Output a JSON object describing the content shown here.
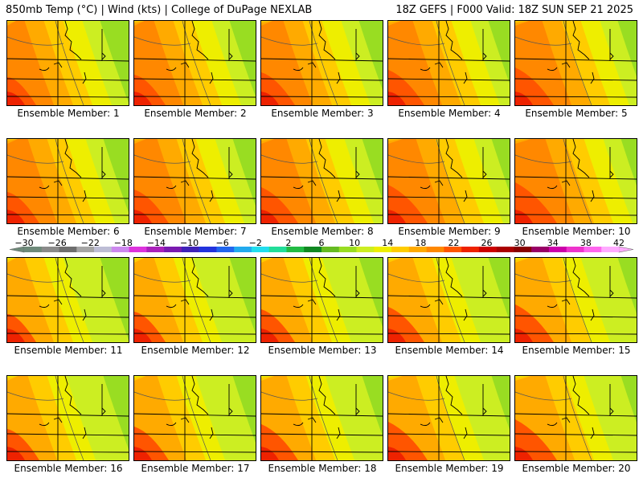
{
  "header": {
    "left": "850mb Temp (°C) | Wind (kts) | College of DuPage NEXLAB",
    "right": "18Z GEFS | F000 Valid: 18Z SUN SEP 21 2025"
  },
  "panels": [
    {
      "label": "Ensemble Member: 1"
    },
    {
      "label": "Ensemble Member: 2"
    },
    {
      "label": "Ensemble Member: 3"
    },
    {
      "label": "Ensemble Member: 4"
    },
    {
      "label": "Ensemble Member: 5"
    },
    {
      "label": "Ensemble Member: 6"
    },
    {
      "label": "Ensemble Member: 7"
    },
    {
      "label": "Ensemble Member: 8"
    },
    {
      "label": "Ensemble Member: 9"
    },
    {
      "label": "Ensemble Member: 10"
    },
    {
      "label": "Ensemble Member: 11"
    },
    {
      "label": "Ensemble Member: 12"
    },
    {
      "label": "Ensemble Member: 13"
    },
    {
      "label": "Ensemble Member: 14"
    },
    {
      "label": "Ensemble Member: 15"
    },
    {
      "label": "Ensemble Member: 16"
    },
    {
      "label": "Ensemble Member: 17"
    },
    {
      "label": "Ensemble Member: 18"
    },
    {
      "label": "Ensemble Member: 19"
    },
    {
      "label": "Ensemble Member: 20"
    }
  ],
  "colorbar": {
    "tick_labels": [
      "-30",
      "-26",
      "-22",
      "-18",
      "-14",
      "-10",
      "-6",
      "-2",
      "2",
      "6",
      "10",
      "14",
      "18",
      "22",
      "26",
      "30",
      "34",
      "38",
      "42"
    ],
    "colors": [
      "#6e8a7a",
      "#8a8a8a",
      "#6e6e6e",
      "#a5a5a5",
      "#bdbdd5",
      "#cc88ee",
      "#dd33dd",
      "#aa22bb",
      "#7a1ab0",
      "#3f22b8",
      "#2233dd",
      "#2266ee",
      "#22aaee",
      "#22ddee",
      "#22dd99",
      "#22bb44",
      "#118822",
      "#66bb22",
      "#99dd22",
      "#ccee22",
      "#eeee00",
      "#ffcc00",
      "#ffaa00",
      "#ff8800",
      "#ff5500",
      "#ee2200",
      "#cc0000",
      "#aa0000",
      "#880000",
      "#990066",
      "#cc00aa",
      "#ee33cc",
      "#ff66ee",
      "#ffaaff"
    ]
  }
}
